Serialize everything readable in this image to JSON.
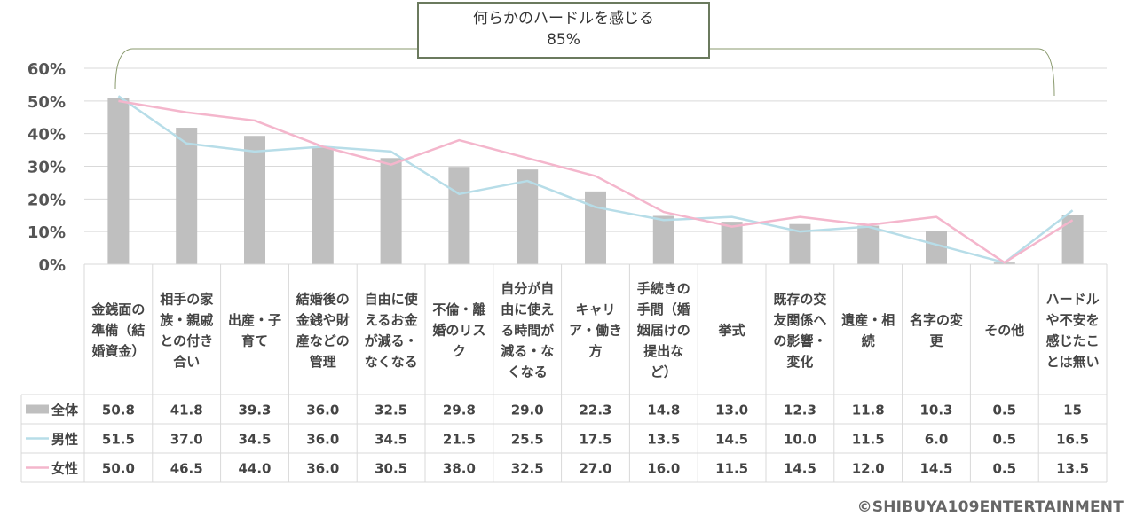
{
  "chart_data": {
    "type": "bar",
    "categories": [
      "金銭面の準備（結婚資金）",
      "相手の家族・親戚との付き合い",
      "出産・子育て",
      "結婚後の金銭や財産などの管理",
      "自由に使えるお金が減る・なくなる",
      "不倫・離婚のリスク",
      "自分が自由に使える時間が減る・なくなる",
      "キャリア・働き方",
      "手続きの手間（婚姻届けの提出など）",
      "挙式",
      "既存の交友関係への影響・変化",
      "遺産・相続",
      "名字の変更",
      "その他",
      "ハードルや不安を感じたことは無い"
    ],
    "category_lines": [
      [
        "金銭面の",
        "準備（結",
        "婚資金）"
      ],
      [
        "相手の家",
        "族・親戚",
        "との付き",
        "合い"
      ],
      [
        "出産・子",
        "育て"
      ],
      [
        "結婚後の",
        "金銭や財",
        "産などの",
        "管理"
      ],
      [
        "自由に使",
        "えるお金",
        "が減る・",
        "なくなる"
      ],
      [
        "不倫・離",
        "婚のリス",
        "ク"
      ],
      [
        "自分が自",
        "由に使え",
        "る時間が",
        "減る・な",
        "くなる"
      ],
      [
        "キャリ",
        "ア・働き",
        "方"
      ],
      [
        "手続きの",
        "手間（婚",
        "姻届けの",
        "提出な",
        "ど）"
      ],
      [
        "挙式"
      ],
      [
        "既存の交",
        "友関係へ",
        "の影響・",
        "変化"
      ],
      [
        "遺産・相",
        "続"
      ],
      [
        "名字の変",
        "更"
      ],
      [
        "その他"
      ],
      [
        "ハードル",
        "や不安を",
        "感じたこ",
        "とは無い"
      ]
    ],
    "series": [
      {
        "name": "全体",
        "kind": "bar",
        "color": "#bfbfbf",
        "values": [
          50.8,
          41.8,
          39.3,
          36.0,
          32.5,
          29.8,
          29.0,
          22.3,
          14.8,
          13.0,
          12.3,
          11.8,
          10.3,
          0.5,
          15
        ],
        "labels": [
          "50.8",
          "41.8",
          "39.3",
          "36.0",
          "32.5",
          "29.8",
          "29.0",
          "22.3",
          "14.8",
          "13.0",
          "12.3",
          "11.8",
          "10.3",
          "0.5",
          "15"
        ]
      },
      {
        "name": "男性",
        "kind": "line",
        "color": "#b7dde8",
        "values": [
          51.5,
          37.0,
          34.5,
          36.0,
          34.5,
          21.5,
          25.5,
          17.5,
          13.5,
          14.5,
          10.0,
          11.5,
          6.0,
          0.5,
          16.5
        ],
        "labels": [
          "51.5",
          "37.0",
          "34.5",
          "36.0",
          "34.5",
          "21.5",
          "25.5",
          "17.5",
          "13.5",
          "14.5",
          "10.0",
          "11.5",
          "6.0",
          "0.5",
          "16.5"
        ]
      },
      {
        "name": "女性",
        "kind": "line",
        "color": "#f4b6cc",
        "values": [
          50.0,
          46.5,
          44.0,
          36.0,
          30.5,
          38.0,
          32.5,
          27.0,
          16.0,
          11.5,
          14.5,
          12.0,
          14.5,
          0.5,
          13.5
        ],
        "labels": [
          "50.0",
          "46.5",
          "44.0",
          "36.0",
          "30.5",
          "38.0",
          "32.5",
          "27.0",
          "16.0",
          "11.5",
          "14.5",
          "12.0",
          "14.5",
          "0.5",
          "13.5"
        ]
      }
    ],
    "yticks": [
      0,
      10,
      20,
      30,
      40,
      50,
      60
    ],
    "ytick_labels": [
      "0%",
      "10%",
      "20%",
      "30%",
      "40%",
      "50%",
      "60%"
    ],
    "ylim": [
      0,
      60
    ],
    "grid": true,
    "annotation": {
      "line1": "何らかのハードルを感じる",
      "line2": "85%"
    }
  },
  "copyright": "©SHIBUYA109ENTERTAINMENT"
}
